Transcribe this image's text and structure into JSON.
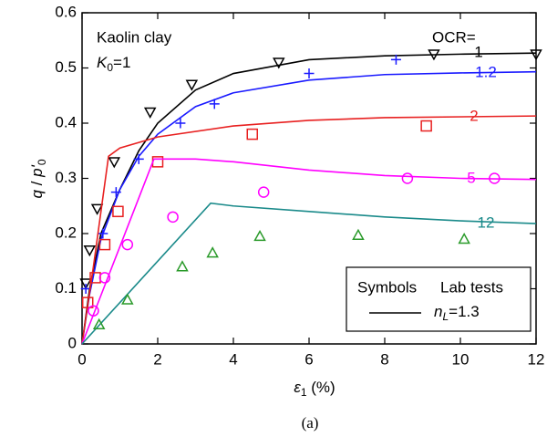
{
  "chart_data": {
    "type": "line",
    "xlim": [
      0,
      12
    ],
    "ylim": [
      0,
      0.6
    ],
    "xticks": [
      0,
      2,
      4,
      6,
      8,
      10,
      12
    ],
    "yticks": [
      0,
      0.1,
      0.2,
      0.3,
      0.4,
      0.5,
      0.6
    ],
    "material": "Kaolin clay",
    "k": {
      "symbol": "K",
      "sub": "0",
      "eq": "=1"
    },
    "ocr": "OCR=",
    "xlabel": {
      "symbol": "ε",
      "sub": "1",
      "unit": " (%)"
    },
    "ylabel": {
      "q": "q",
      "slash": " / ",
      "p": "p'",
      "sub": "0"
    },
    "caption": "(a)",
    "legend": {
      "symbols": "Symbols",
      "tests": "Lab tests",
      "n": "n",
      "n_sub": "L",
      "n_eq": "=1.3",
      "color": "#000000"
    },
    "series": [
      {
        "name": "1",
        "color": "#000000",
        "x": [
          0,
          0.2,
          0.5,
          1,
          1.5,
          2,
          3,
          4,
          6,
          8,
          10,
          12
        ],
        "values": [
          0,
          0.1,
          0.2,
          0.28,
          0.35,
          0.4,
          0.46,
          0.49,
          0.515,
          0.522,
          0.525,
          0.527
        ],
        "tests": {
          "marker": "triangle-down",
          "color": "#000000",
          "x": [
            0.1,
            0.2,
            0.4,
            0.85,
            1.8,
            2.9,
            5.2,
            9.3,
            12
          ],
          "values": [
            0.11,
            0.17,
            0.245,
            0.33,
            0.42,
            0.47,
            0.51,
            0.525,
            0.525
          ]
        }
      },
      {
        "name": "1.2",
        "color": "#1a1aff",
        "x": [
          0,
          0.2,
          0.5,
          1,
          1.5,
          2,
          3,
          4,
          6,
          8,
          10,
          12
        ],
        "values": [
          0,
          0.09,
          0.19,
          0.28,
          0.34,
          0.38,
          0.43,
          0.455,
          0.478,
          0.488,
          0.491,
          0.493
        ],
        "tests": {
          "marker": "plus",
          "color": "#1a1aff",
          "x": [
            0.1,
            0.55,
            0.9,
            1.5,
            2.6,
            3.5,
            6,
            8.3
          ],
          "values": [
            0.1,
            0.2,
            0.275,
            0.335,
            0.4,
            0.435,
            0.49,
            0.515
          ]
        }
      },
      {
        "name": "2",
        "color": "#e82020",
        "x": [
          0,
          0.3,
          0.7,
          1,
          2,
          4,
          6,
          8,
          12
        ],
        "values": [
          0,
          0.14,
          0.34,
          0.355,
          0.375,
          0.395,
          0.405,
          0.41,
          0.413
        ],
        "tests": {
          "marker": "square",
          "color": "#e82020",
          "x": [
            0.15,
            0.35,
            0.6,
            0.95,
            2,
            4.5,
            9.1
          ],
          "values": [
            0.075,
            0.12,
            0.18,
            0.24,
            0.33,
            0.38,
            0.395
          ]
        }
      },
      {
        "name": "5",
        "color": "#ff00ff",
        "x": [
          0,
          1.9,
          3,
          4,
          6,
          8,
          10,
          12
        ],
        "values": [
          0,
          0.335,
          0.335,
          0.33,
          0.315,
          0.305,
          0.3,
          0.298
        ],
        "tests": {
          "marker": "circle",
          "color": "#ff00ff",
          "x": [
            0.3,
            0.6,
            1.2,
            2.4,
            4.8,
            8.6,
            10.9
          ],
          "values": [
            0.06,
            0.12,
            0.18,
            0.23,
            0.275,
            0.3,
            0.3
          ]
        }
      },
      {
        "name": "12",
        "color": "#1a8a8a",
        "x": [
          0,
          3.4,
          4,
          6,
          8,
          10,
          12
        ],
        "values": [
          0,
          0.255,
          0.25,
          0.24,
          0.23,
          0.223,
          0.218
        ],
        "tests": {
          "marker": "triangle-up",
          "color": "#2a9a2a",
          "x": [
            0.45,
            1.2,
            2.65,
            3.45,
            4.7,
            7.3,
            10.1
          ],
          "values": [
            0.035,
            0.08,
            0.14,
            0.165,
            0.195,
            0.197,
            0.19
          ]
        }
      }
    ]
  }
}
